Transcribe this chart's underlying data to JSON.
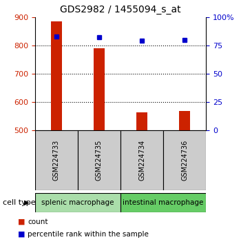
{
  "title": "GDS2982 / 1455094_s_at",
  "samples": [
    "GSM224733",
    "GSM224735",
    "GSM224734",
    "GSM224736"
  ],
  "counts": [
    885,
    790,
    565,
    570
  ],
  "percentile_ranks": [
    83,
    82,
    79,
    80
  ],
  "ylim_left": [
    500,
    900
  ],
  "ylim_right": [
    0,
    100
  ],
  "yticks_left": [
    500,
    600,
    700,
    800,
    900
  ],
  "yticks_right": [
    0,
    25,
    50,
    75,
    100
  ],
  "bar_color": "#cc2200",
  "dot_color": "#0000cc",
  "cell_types": [
    {
      "label": "splenic macrophage",
      "cols": [
        0,
        1
      ],
      "color": "#aaddaa"
    },
    {
      "label": "intestinal macrophage",
      "cols": [
        2,
        3
      ],
      "color": "#66cc66"
    }
  ],
  "tick_label_color_left": "#cc2200",
  "tick_label_color_right": "#0000cc",
  "background_color": "#ffffff",
  "sample_box_color": "#cccccc",
  "cell_type_label": "cell type"
}
